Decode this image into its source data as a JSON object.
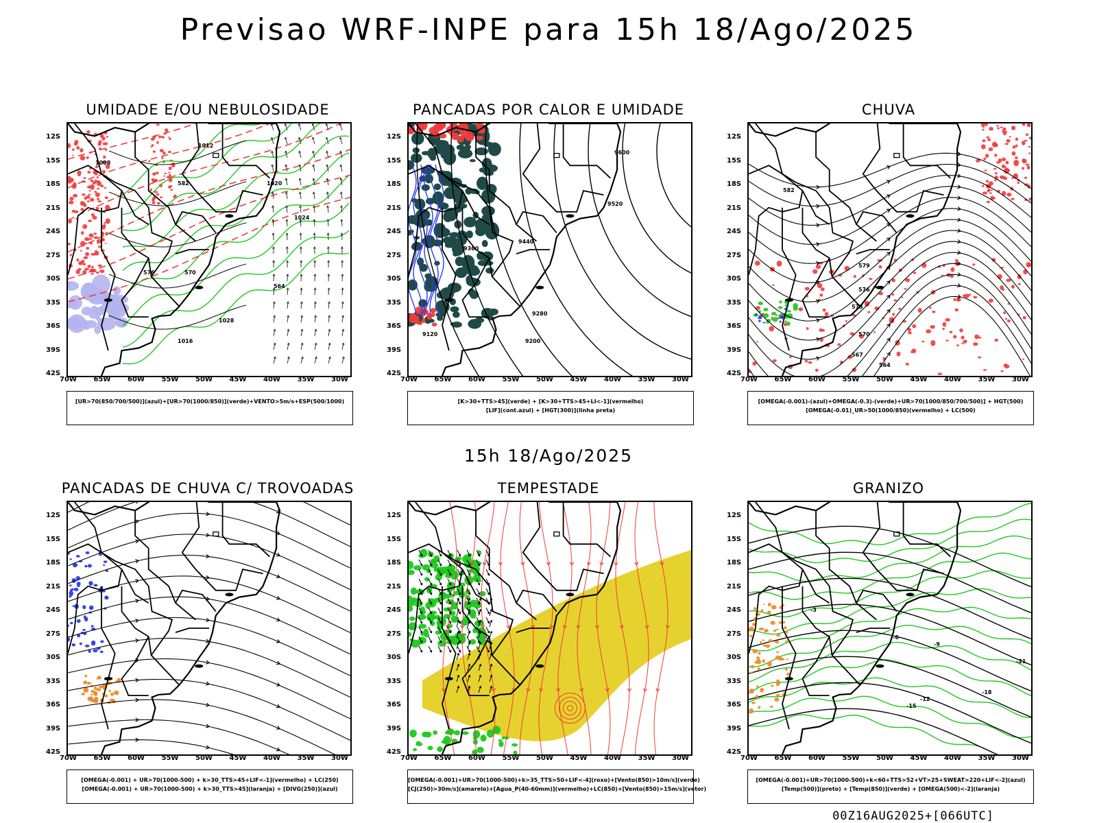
{
  "header": {
    "title": "Previsao WRF-INPE  para 15h 18/Ago/2025",
    "mid_title": "15h 18/Ago/2025",
    "run_label": "00Z16AUG2025+[066UTC]"
  },
  "axes": {
    "lat_ticks": [
      "12S",
      "15S",
      "18S",
      "21S",
      "24S",
      "27S",
      "30S",
      "33S",
      "36S",
      "39S",
      "42S"
    ],
    "lon_ticks": [
      "70W",
      "65W",
      "60W",
      "55W",
      "50W",
      "45W",
      "40W",
      "35W",
      "30W"
    ]
  },
  "colors": {
    "red": "#ef3b3b",
    "green": "#1ec81e",
    "blue": "#2b3be8",
    "lavender": "#b4b4f0",
    "darkgreen": "#1f4a48",
    "yellow": "#e6d22e",
    "orange": "#f08a24",
    "black": "#000000"
  },
  "panels": [
    {
      "title": "UMIDADE E/OU NEBULOSIDADE",
      "legend": [
        "[UR>70(850/700/500)](azul)+[UR>70(1000/850)](verde)+VENTO>5m/s+ESP(500/1000)"
      ],
      "labels": [
        "1008",
        "1012",
        "1016",
        "1020",
        "1024",
        "1028",
        "564",
        "570",
        "576",
        "582"
      ]
    },
    {
      "title": "PANCADAS POR CALOR E UMIDADE",
      "legend": [
        "[K>30+TTS>45](verde) + [K>30+TTS>45+LI<-1](vermelho)",
        "[LIF](cont.azul) + [HGT(300)](linha preta)"
      ],
      "labels": [
        "9600",
        "9520",
        "9440",
        "9360",
        "9280",
        "9200",
        "9120"
      ]
    },
    {
      "title": "CHUVA",
      "legend": [
        "[OMEGA(-0.001)-(azul)+OMEGA(-0.3)-(verde)+UR>70(1000/850/700/500)] + HGT(500)",
        "[OMEGA(-0.01)_UR>50(1000/850)(vermelho) + LC(500)"
      ],
      "labels": [
        "582",
        "579",
        "576",
        "573",
        "570",
        "567",
        "564"
      ]
    },
    {
      "title": "PANCADAS DE CHUVA C/ TROVOADAS",
      "legend": [
        "[OMEGA(-0.001) + UR>70(1000-500) + k>30_TTS>45+LIF<-1](vermelho) + LC(250)",
        "[OMEGA(-0.001) + UR>70(1000-500) + k>30_TTS>45](laranja) + [DIVG(250)](azul)"
      ],
      "labels": []
    },
    {
      "title": "TEMPESTADE",
      "legend": [
        "[OMEGA(-0.001)+UR>70(1000-500)+k>35_TTS>50+LIF<-4](roxo)+[Vento(850)>10m/s](verde)",
        "[CJ(250)>30m/s](amarelo)+[Agua_P(40-60mm)](vermelho)+LC(850)+[Vento(850)>15m/s](vetor)"
      ],
      "labels": []
    },
    {
      "title": "GRANIZO",
      "legend": [
        "[OMEGA(-0.001)+UR>70(1000-500)+k<60+TTS>52+VT>25+SWEAT>220+LIF<-2](azul)",
        "[Temp(500)](preto) + [Temp(850)](verde) + [OMEGA(500)<-2](laranja)"
      ],
      "labels": [
        "-3",
        "-6",
        "-9",
        "-12",
        "-15",
        "-18",
        "-21"
      ]
    }
  ]
}
